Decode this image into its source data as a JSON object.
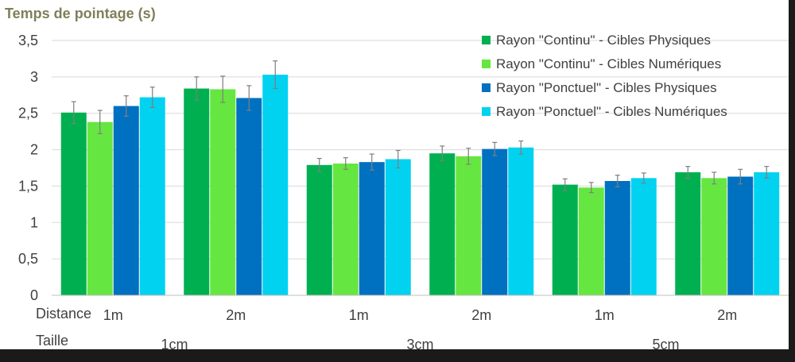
{
  "chart_data": {
    "type": "bar",
    "title": "Temps de pointage (s)",
    "ylim": [
      0,
      3.5
    ],
    "yticks": [
      "0",
      "0,5",
      "1",
      "1,5",
      "2",
      "2,5",
      "3",
      "3,5"
    ],
    "grid": true,
    "legend_position": "top-right",
    "row_labels": {
      "distance": "Distance",
      "taille": "Taille"
    },
    "categories": [
      "1m",
      "2m",
      "1m",
      "2m",
      "1m",
      "2m"
    ],
    "groups": [
      "1cm",
      "3cm",
      "5cm"
    ],
    "series": [
      {
        "name": "Rayon \"Continu\" - Cibles Physiques",
        "color": "#00b050",
        "values": [
          2.51,
          2.84,
          1.79,
          1.95,
          1.52,
          1.69
        ],
        "errors": [
          0.15,
          0.16,
          0.09,
          0.1,
          0.08,
          0.08
        ]
      },
      {
        "name": "Rayon \"Continu\" - Cibles Numériques",
        "color": "#66e640",
        "values": [
          2.38,
          2.83,
          1.81,
          1.91,
          1.48,
          1.61
        ],
        "errors": [
          0.16,
          0.18,
          0.08,
          0.11,
          0.07,
          0.08
        ]
      },
      {
        "name": "Rayon \"Ponctuel\" - Cibles Physiques",
        "color": "#0070c0",
        "values": [
          2.6,
          2.71,
          1.83,
          2.01,
          1.57,
          1.63
        ],
        "errors": [
          0.14,
          0.17,
          0.11,
          0.09,
          0.08,
          0.1
        ]
      },
      {
        "name": "Rayon \"Ponctuel\" - Cibles Numériques",
        "color": "#00d2f0",
        "values": [
          2.72,
          3.03,
          1.87,
          2.03,
          1.61,
          1.69
        ],
        "errors": [
          0.14,
          0.19,
          0.12,
          0.09,
          0.07,
          0.08
        ]
      }
    ]
  },
  "colors": {
    "title": "#7f7f5a",
    "text": "#404040",
    "grid": "#d9d9d9",
    "errorbar": "#7f7f7f"
  }
}
